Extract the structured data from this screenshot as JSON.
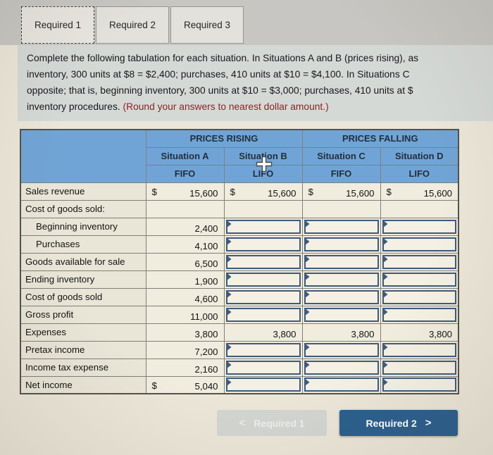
{
  "tabs": [
    {
      "label": "Required 1",
      "active": true
    },
    {
      "label": "Required 2",
      "active": false
    },
    {
      "label": "Required 3",
      "active": false
    }
  ],
  "instructions": {
    "line1": "Complete the following tabulation for each situation. In Situations A and B (prices rising), as",
    "line2": "inventory, 300 units at $8 = $2,400; purchases, 410 units at $10 = $4,100. In Situations C",
    "line3": "opposite; that is, beginning inventory, 300 units at $10 = $3,000; purchases, 410 units at $",
    "line4_prefix": "inventory procedures. ",
    "round_note": "(Round your answers to nearest dollar amount.)"
  },
  "table": {
    "group_headers": [
      "PRICES RISING",
      "PRICES FALLING"
    ],
    "columns": [
      {
        "situation": "Situation A",
        "method": "FIFO"
      },
      {
        "situation": "Situation B",
        "method": "LIFO"
      },
      {
        "situation": "Situation C",
        "method": "FIFO"
      },
      {
        "situation": "Situation D",
        "method": "LIFO"
      }
    ],
    "rows": [
      {
        "label": "Sales revenue",
        "indent": false,
        "cells": [
          {
            "kind": "static",
            "dollar": "$",
            "value": "15,600"
          },
          {
            "kind": "static",
            "dollar": "$",
            "value": "15,600"
          },
          {
            "kind": "static",
            "dollar": "$",
            "value": "15,600"
          },
          {
            "kind": "static",
            "dollar": "$",
            "value": "15,600"
          }
        ]
      },
      {
        "label": "Cost of goods sold:",
        "indent": false,
        "cells": [
          {
            "kind": "blank"
          },
          {
            "kind": "blank"
          },
          {
            "kind": "blank"
          },
          {
            "kind": "blank"
          }
        ]
      },
      {
        "label": "Beginning inventory",
        "indent": true,
        "cells": [
          {
            "kind": "static",
            "value": "2,400"
          },
          {
            "kind": "input",
            "value": ""
          },
          {
            "kind": "input",
            "value": ""
          },
          {
            "kind": "input",
            "value": ""
          }
        ]
      },
      {
        "label": "Purchases",
        "indent": true,
        "cells": [
          {
            "kind": "static",
            "value": "4,100"
          },
          {
            "kind": "input",
            "value": ""
          },
          {
            "kind": "input",
            "value": ""
          },
          {
            "kind": "input",
            "value": ""
          }
        ]
      },
      {
        "label": "Goods available for sale",
        "indent": false,
        "cells": [
          {
            "kind": "static",
            "value": "6,500"
          },
          {
            "kind": "input",
            "value": ""
          },
          {
            "kind": "input",
            "value": ""
          },
          {
            "kind": "input",
            "value": ""
          }
        ]
      },
      {
        "label": "Ending inventory",
        "indent": false,
        "cells": [
          {
            "kind": "static",
            "value": "1,900"
          },
          {
            "kind": "input",
            "value": ""
          },
          {
            "kind": "input",
            "value": ""
          },
          {
            "kind": "input",
            "value": ""
          }
        ]
      },
      {
        "label": "Cost of goods sold",
        "indent": false,
        "cells": [
          {
            "kind": "static",
            "value": "4,600"
          },
          {
            "kind": "input",
            "value": ""
          },
          {
            "kind": "input",
            "value": ""
          },
          {
            "kind": "input",
            "value": ""
          }
        ]
      },
      {
        "label": "Gross profit",
        "indent": false,
        "cells": [
          {
            "kind": "static",
            "value": "11,000"
          },
          {
            "kind": "input",
            "value": ""
          },
          {
            "kind": "input",
            "value": ""
          },
          {
            "kind": "input",
            "value": ""
          }
        ]
      },
      {
        "label": "Expenses",
        "indent": false,
        "cells": [
          {
            "kind": "static",
            "value": "3,800"
          },
          {
            "kind": "static",
            "value": "3,800"
          },
          {
            "kind": "static",
            "value": "3,800"
          },
          {
            "kind": "static",
            "value": "3,800"
          }
        ]
      },
      {
        "label": "Pretax income",
        "indent": false,
        "cells": [
          {
            "kind": "static",
            "value": "7,200"
          },
          {
            "kind": "input",
            "value": ""
          },
          {
            "kind": "input",
            "value": ""
          },
          {
            "kind": "input",
            "value": ""
          }
        ]
      },
      {
        "label": "Income tax expense",
        "indent": false,
        "cells": [
          {
            "kind": "static",
            "value": "2,160"
          },
          {
            "kind": "input",
            "value": ""
          },
          {
            "kind": "input",
            "value": ""
          },
          {
            "kind": "input",
            "value": ""
          }
        ]
      },
      {
        "label": "Net income",
        "indent": false,
        "cells": [
          {
            "kind": "static",
            "dollar": "$",
            "value": "5,040"
          },
          {
            "kind": "input",
            "value": ""
          },
          {
            "kind": "input",
            "value": ""
          },
          {
            "kind": "input",
            "value": ""
          }
        ]
      }
    ]
  },
  "footer": {
    "prev_icon": "<",
    "prev_label": "Required 1",
    "next_label": "Required 2",
    "next_icon": ">"
  },
  "colors": {
    "header_blue": "#71a4d6",
    "next_button_blue": "#2c5f8e",
    "note_red": "#8e2124",
    "input_border": "#3f5a7c"
  }
}
